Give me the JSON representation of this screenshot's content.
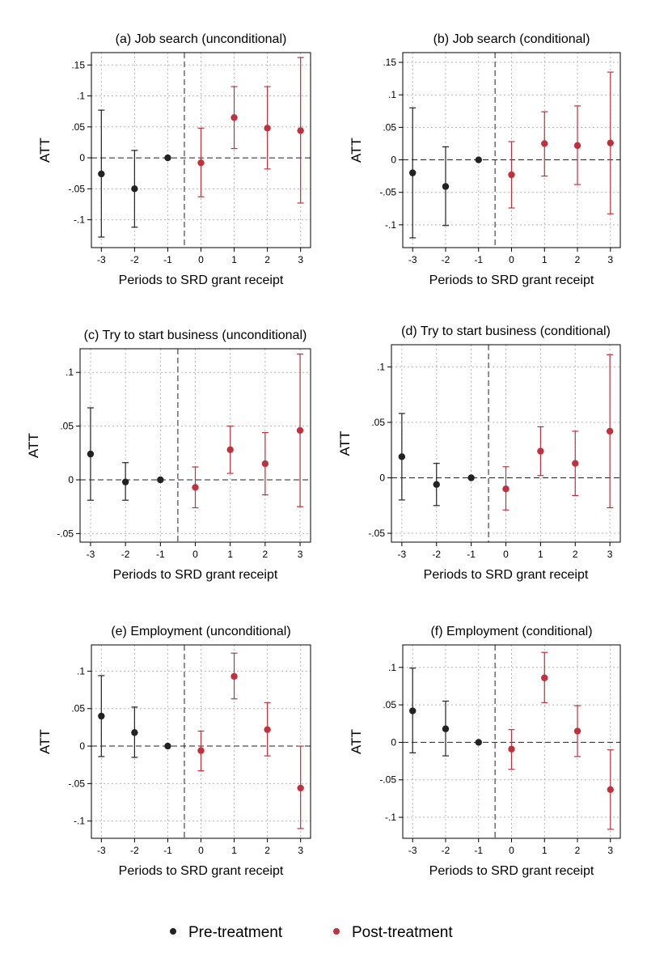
{
  "legend": {
    "pre": {
      "label": "Pre-treatment",
      "color": "#222222"
    },
    "post": {
      "label": "Post-treatment",
      "color": "#c0313e"
    }
  },
  "chart_data": [
    {
      "type": "scatter",
      "title": "(a) Job search (unconditional)",
      "xlabel": "Periods to SRD grant receipt",
      "ylabel": "ATT",
      "x": [
        -3,
        -2,
        -1,
        0,
        1,
        2,
        3
      ],
      "y": [
        -0.026,
        -0.05,
        0.0,
        -0.008,
        0.065,
        0.048,
        0.044
      ],
      "ci_low": [
        -0.128,
        -0.112,
        null,
        -0.063,
        0.015,
        -0.018,
        -0.073
      ],
      "ci_high": [
        0.077,
        0.012,
        null,
        0.048,
        0.115,
        0.115,
        0.162
      ],
      "group": [
        "pre",
        "pre",
        "pre",
        "post",
        "post",
        "post",
        "post"
      ],
      "yticks": [
        -0.1,
        -0.05,
        0,
        0.05,
        0.1,
        0.15
      ],
      "ytick_labels": [
        "-.1",
        "-.05",
        "0",
        ".05",
        ".1",
        ".15"
      ],
      "ylim": [
        -0.145,
        0.17
      ],
      "xlim": [
        -3.3,
        3.3
      ],
      "grid": true
    },
    {
      "type": "scatter",
      "title": "(b) Job search (conditional)",
      "xlabel": "Periods to SRD grant receipt",
      "ylabel": "ATT",
      "x": [
        -3,
        -2,
        -1,
        0,
        1,
        2,
        3
      ],
      "y": [
        -0.02,
        -0.041,
        0.0,
        -0.023,
        0.025,
        0.022,
        0.026
      ],
      "ci_low": [
        -0.12,
        -0.101,
        null,
        -0.074,
        -0.025,
        -0.038,
        -0.083
      ],
      "ci_high": [
        0.08,
        0.02,
        null,
        0.028,
        0.074,
        0.083,
        0.135
      ],
      "group": [
        "pre",
        "pre",
        "pre",
        "post",
        "post",
        "post",
        "post"
      ],
      "yticks": [
        -0.1,
        -0.05,
        0,
        0.05,
        0.1,
        0.15
      ],
      "ytick_labels": [
        "-.1",
        "-.05",
        "0",
        ".05",
        ".1",
        ".15"
      ],
      "ylim": [
        -0.135,
        0.165
      ],
      "xlim": [
        -3.3,
        3.3
      ],
      "grid": true
    },
    {
      "type": "scatter",
      "title": "(c) Try to start business (unconditional)",
      "xlabel": "Periods to SRD grant receipt",
      "ylabel": "ATT",
      "x": [
        -3,
        -2,
        -1,
        0,
        1,
        2,
        3
      ],
      "y": [
        0.024,
        -0.002,
        0.0,
        -0.007,
        0.028,
        0.015,
        0.046
      ],
      "ci_low": [
        -0.019,
        -0.019,
        null,
        -0.026,
        0.006,
        -0.014,
        -0.025
      ],
      "ci_high": [
        0.067,
        0.016,
        null,
        0.012,
        0.05,
        0.044,
        0.117
      ],
      "group": [
        "pre",
        "pre",
        "pre",
        "post",
        "post",
        "post",
        "post"
      ],
      "yticks": [
        -0.05,
        0,
        0.05,
        0.1
      ],
      "ytick_labels": [
        "-.05",
        "0",
        ".05",
        ".1"
      ],
      "ylim": [
        -0.058,
        0.122
      ],
      "xlim": [
        -3.3,
        3.3
      ],
      "grid": true
    },
    {
      "type": "scatter",
      "title": "(d) Try to start business (conditional)",
      "xlabel": "Periods to SRD grant receipt",
      "ylabel": "ATT",
      "x": [
        -3,
        -2,
        -1,
        0,
        1,
        2,
        3
      ],
      "y": [
        0.019,
        -0.006,
        0.0,
        -0.01,
        0.024,
        0.013,
        0.042
      ],
      "ci_low": [
        -0.02,
        -0.025,
        null,
        -0.029,
        0.002,
        -0.016,
        -0.027
      ],
      "ci_high": [
        0.058,
        0.013,
        null,
        0.01,
        0.046,
        0.042,
        0.111
      ],
      "group": [
        "pre",
        "pre",
        "pre",
        "post",
        "post",
        "post",
        "post"
      ],
      "yticks": [
        -0.05,
        0,
        0.05,
        0.1
      ],
      "ytick_labels": [
        "-.05",
        "0",
        ".05",
        ".1"
      ],
      "ylim": [
        -0.058,
        0.12
      ],
      "xlim": [
        -3.3,
        3.3
      ],
      "grid": true
    },
    {
      "type": "scatter",
      "title": "(e) Employment (unconditional)",
      "xlabel": "Periods to SRD grant receipt",
      "ylabel": "ATT",
      "x": [
        -3,
        -2,
        -1,
        0,
        1,
        2,
        3
      ],
      "y": [
        0.04,
        0.018,
        0.0,
        -0.006,
        0.093,
        0.022,
        -0.056
      ],
      "ci_low": [
        -0.014,
        -0.015,
        null,
        -0.033,
        0.063,
        -0.013,
        -0.11
      ],
      "ci_high": [
        0.094,
        0.052,
        null,
        0.02,
        0.124,
        0.058,
        0.0
      ],
      "group": [
        "pre",
        "pre",
        "pre",
        "post",
        "post",
        "post",
        "post"
      ],
      "yticks": [
        -0.1,
        -0.05,
        0,
        0.05,
        0.1
      ],
      "ytick_labels": [
        "-.1",
        "-.05",
        "0",
        ".05",
        ".1"
      ],
      "ylim": [
        -0.123,
        0.135
      ],
      "xlim": [
        -3.3,
        3.3
      ],
      "grid": true
    },
    {
      "type": "scatter",
      "title": "(f) Employment (conditional)",
      "xlabel": "Periods to SRD grant receipt",
      "ylabel": "ATT",
      "x": [
        -3,
        -2,
        -1,
        0,
        1,
        2,
        3
      ],
      "y": [
        0.042,
        0.018,
        0.0,
        -0.009,
        0.086,
        0.015,
        -0.063
      ],
      "ci_low": [
        -0.014,
        -0.018,
        null,
        -0.036,
        0.053,
        -0.019,
        -0.116
      ],
      "ci_high": [
        0.099,
        0.055,
        null,
        0.017,
        0.12,
        0.049,
        -0.01
      ],
      "group": [
        "pre",
        "pre",
        "pre",
        "post",
        "post",
        "post",
        "post"
      ],
      "yticks": [
        -0.1,
        -0.05,
        0,
        0.05,
        0.1
      ],
      "ytick_labels": [
        "-.1",
        "-.05",
        "0",
        ".05",
        ".1"
      ],
      "ylim": [
        -0.128,
        0.13
      ],
      "xlim": [
        -3.3,
        3.3
      ],
      "grid": true
    }
  ]
}
